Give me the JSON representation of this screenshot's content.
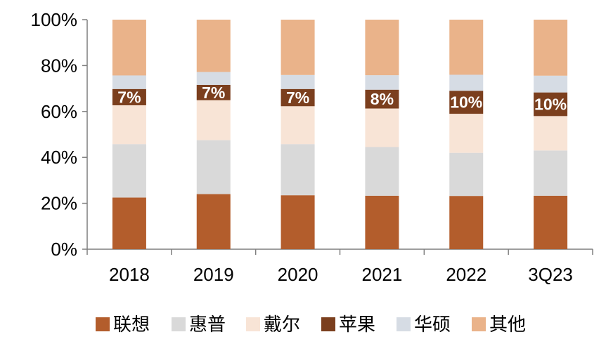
{
  "chart_data": {
    "type": "bar",
    "stacked": true,
    "categories": [
      "2018",
      "2019",
      "2020",
      "2021",
      "2022",
      "3Q23"
    ],
    "series": [
      {
        "name": "联想",
        "color": "#B35D2C",
        "values": [
          22.5,
          24.0,
          23.5,
          23.3,
          23.2,
          23.3
        ]
      },
      {
        "name": "惠普",
        "color": "#D9D9D9",
        "values": [
          23.3,
          23.5,
          22.3,
          21.2,
          18.8,
          19.7
        ]
      },
      {
        "name": "戴尔",
        "color": "#F8E4D6",
        "values": [
          16.9,
          17.4,
          16.5,
          16.8,
          17.0,
          15.0
        ]
      },
      {
        "name": "苹果",
        "color": "#7B3F1E",
        "values": [
          7.1,
          6.7,
          7.5,
          8.2,
          10.0,
          10.3
        ]
      },
      {
        "name": "华硕",
        "color": "#D6DCE4",
        "values": [
          5.9,
          5.6,
          6.1,
          6.3,
          7.0,
          7.3
        ]
      },
      {
        "name": "其他",
        "color": "#EAB38A",
        "values": [
          24.3,
          22.8,
          24.1,
          24.2,
          24.0,
          24.4
        ]
      }
    ],
    "data_labels": {
      "series": "苹果",
      "labels": [
        "7%",
        "7%",
        "7%",
        "8%",
        "10%",
        "10%"
      ]
    },
    "y_ticks": [
      "0%",
      "20%",
      "40%",
      "60%",
      "80%",
      "100%"
    ],
    "ylim": [
      0,
      100
    ],
    "title": "",
    "xlabel": "",
    "ylabel": "",
    "grid": false,
    "legend_position": "bottom"
  }
}
